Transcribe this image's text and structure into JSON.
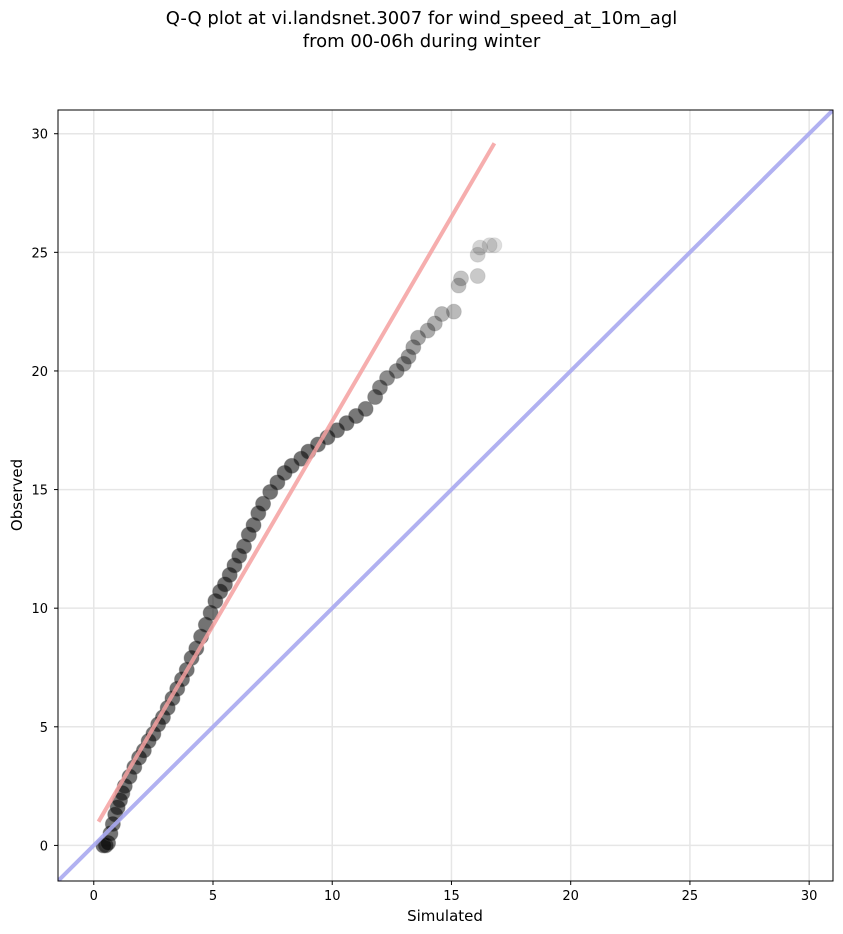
{
  "chart_data": {
    "type": "scatter",
    "title": "Q-Q plot at vi.landsnet.3007 for wind_speed_at_10m_agl\nfrom 00-06h during winter",
    "title_lines": [
      "Q-Q plot at vi.landsnet.3007 for wind_speed_at_10m_agl",
      "from 00-06h during winter"
    ],
    "xlabel": "Simulated",
    "ylabel": "Observed",
    "xlim": [
      -1.5,
      31
    ],
    "ylim": [
      -1.5,
      31
    ],
    "xticks": [
      0,
      5,
      10,
      15,
      20,
      25,
      30
    ],
    "yticks": [
      0,
      5,
      10,
      15,
      20,
      25,
      30
    ],
    "grid": true,
    "legend": "none",
    "series": [
      {
        "kind": "quantile_points",
        "color": "#000000",
        "points": [
          [
            0.4,
            0.0
          ],
          [
            0.5,
            0.0
          ],
          [
            0.6,
            0.1
          ],
          [
            0.7,
            0.5
          ],
          [
            0.8,
            0.9
          ],
          [
            0.9,
            1.3
          ],
          [
            1.0,
            1.6
          ],
          [
            1.1,
            1.9
          ],
          [
            1.2,
            2.2
          ],
          [
            1.3,
            2.5
          ],
          [
            1.5,
            2.9
          ],
          [
            1.7,
            3.3
          ],
          [
            1.9,
            3.7
          ],
          [
            2.1,
            4.0
          ],
          [
            2.3,
            4.4
          ],
          [
            2.5,
            4.7
          ],
          [
            2.7,
            5.1
          ],
          [
            2.9,
            5.4
          ],
          [
            3.1,
            5.8
          ],
          [
            3.3,
            6.2
          ],
          [
            3.5,
            6.6
          ],
          [
            3.7,
            7.0
          ],
          [
            3.9,
            7.4
          ],
          [
            4.1,
            7.9
          ],
          [
            4.3,
            8.3
          ],
          [
            4.5,
            8.8
          ],
          [
            4.7,
            9.3
          ],
          [
            4.9,
            9.8
          ],
          [
            5.1,
            10.3
          ],
          [
            5.3,
            10.7
          ],
          [
            5.5,
            11.0
          ],
          [
            5.7,
            11.4
          ],
          [
            5.9,
            11.8
          ],
          [
            6.1,
            12.2
          ],
          [
            6.3,
            12.6
          ],
          [
            6.5,
            13.1
          ],
          [
            6.7,
            13.5
          ],
          [
            6.9,
            14.0
          ],
          [
            7.1,
            14.4
          ],
          [
            7.4,
            14.9
          ],
          [
            7.7,
            15.3
          ],
          [
            8.0,
            15.7
          ],
          [
            8.3,
            16.0
          ],
          [
            8.7,
            16.3
          ],
          [
            9.0,
            16.6
          ],
          [
            9.4,
            16.9
          ],
          [
            9.8,
            17.2
          ],
          [
            10.2,
            17.5
          ],
          [
            10.6,
            17.8
          ],
          [
            11.0,
            18.1
          ],
          [
            11.4,
            18.4
          ],
          [
            11.8,
            18.9
          ],
          [
            12.0,
            19.3
          ],
          [
            12.3,
            19.7
          ],
          [
            12.7,
            20.0
          ],
          [
            13.0,
            20.3
          ],
          [
            13.2,
            20.6
          ],
          [
            13.4,
            21.0
          ],
          [
            13.6,
            21.4
          ],
          [
            14.0,
            21.7
          ],
          [
            14.3,
            22.0
          ],
          [
            14.6,
            22.4
          ],
          [
            15.1,
            22.5
          ],
          [
            15.3,
            23.6
          ],
          [
            15.4,
            23.9
          ],
          [
            16.1,
            24.0
          ],
          [
            16.1,
            24.9
          ],
          [
            16.2,
            25.2
          ],
          [
            16.6,
            25.3
          ],
          [
            16.8,
            25.3
          ]
        ]
      },
      {
        "kind": "fit_line",
        "color": "#f4a0a0",
        "x": [
          0.2,
          16.8
        ],
        "y": [
          1.0,
          29.6
        ]
      },
      {
        "kind": "identity_line",
        "color": "#a8a8f0",
        "x": [
          -1.5,
          31
        ],
        "y": [
          -1.5,
          31
        ]
      }
    ]
  }
}
